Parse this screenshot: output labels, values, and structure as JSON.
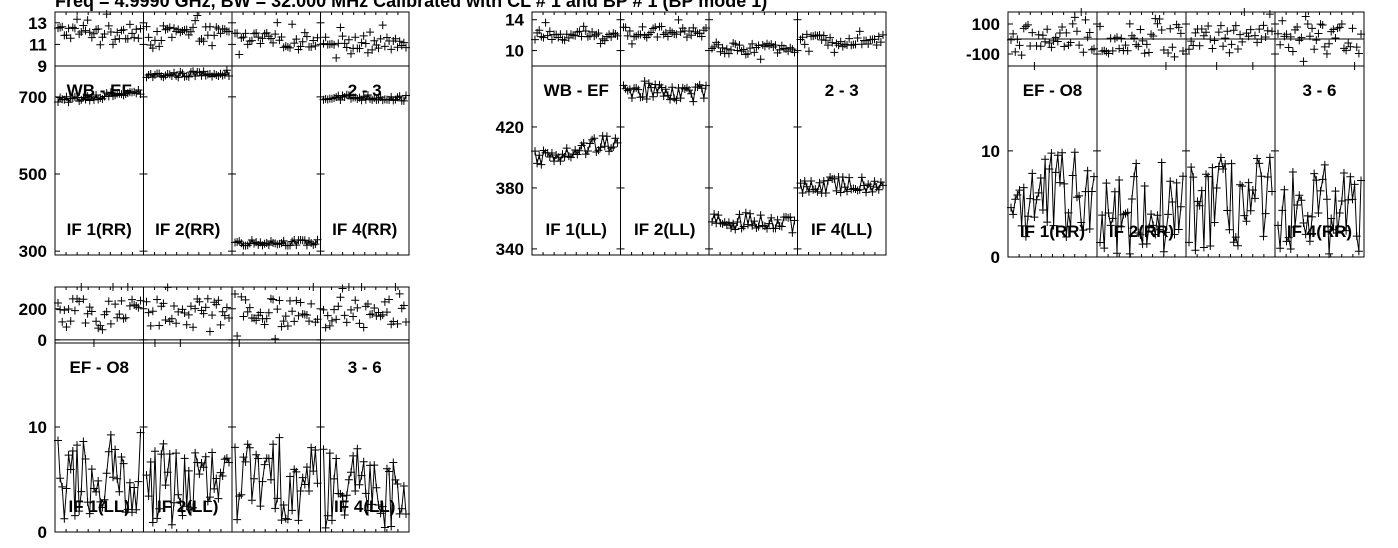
{
  "page_title": "Freq = 4.9990 GHz, BW = 32.000 MHz Calibrated with CL # 1 and BP # 1 (BP mode 1)",
  "chart_data": [
    {
      "type": "line",
      "baseline": "WB - EF",
      "polarization": "RR",
      "if_labels": [
        "IF 1(RR)",
        "IF 2(RR)",
        "",
        "IF 4(RR)"
      ],
      "panel_labels": [
        "WB - EF",
        "",
        "",
        "2 - 3"
      ],
      "phase": {
        "ylim": [
          9,
          14
        ],
        "yticks": [
          "13",
          "11",
          "9"
        ],
        "ytick_values": [
          13,
          11,
          9
        ],
        "levels": [
          12.2,
          12.0,
          11.4,
          11.1
        ],
        "spread": 1.2
      },
      "amplitude": {
        "ylim": [
          290,
          780
        ],
        "yticks": [
          "700",
          "500",
          "300"
        ],
        "ytick_values": [
          700,
          500,
          300
        ],
        "levels": [
          [
            690,
            712
          ],
          [
            755,
            762
          ],
          [
            322,
            322
          ],
          [
            700,
            696
          ]
        ],
        "spread": 8
      }
    },
    {
      "type": "line",
      "baseline": "WB - EF",
      "polarization": "LL",
      "if_labels": [
        "IF 1(LL)",
        "IF 2(LL)",
        "",
        "IF 4(LL)"
      ],
      "panel_labels": [
        "WB - EF",
        "",
        "",
        "2 - 3"
      ],
      "phase": {
        "ylim": [
          8,
          15
        ],
        "yticks": [
          "14",
          "10"
        ],
        "ytick_values": [
          14,
          10
        ],
        "levels": [
          12.0,
          12.4,
          10.2,
          11.4
        ],
        "spread": 1.2
      },
      "amplitude": {
        "ylim": [
          336,
          460
        ],
        "yticks": [
          "420",
          "380",
          "340"
        ],
        "ytick_values": [
          420,
          380,
          340
        ],
        "levels": [
          [
            400,
            410
          ],
          [
            445,
            442
          ],
          [
            360,
            355
          ],
          [
            381,
            383
          ]
        ],
        "spread": 6
      }
    },
    {
      "type": "line",
      "baseline": "EF - O8",
      "polarization": "RR",
      "if_labels": [
        "IF 1(RR)",
        "IF 2(RR)",
        "",
        "IF 4(RR)"
      ],
      "panel_labels": [
        "EF - O8",
        "",
        "",
        "3 - 6"
      ],
      "phase": {
        "ylim": [
          -180,
          180
        ],
        "yticks": [
          "100",
          "-100"
        ],
        "ytick_values": [
          100,
          -100
        ],
        "levels": [
          0,
          0,
          0,
          0
        ],
        "spread": 170
      },
      "amplitude": {
        "ylim": [
          0,
          18
        ],
        "yticks": [
          "10",
          "0"
        ],
        "ytick_values": [
          10,
          0
        ],
        "levels": [
          [
            5.5,
            5.5
          ],
          [
            4.5,
            4.5
          ],
          [
            5.0,
            5.0
          ],
          [
            4.5,
            4.5
          ]
        ],
        "spread": 4.5
      }
    },
    {
      "type": "line",
      "baseline": "EF - O8",
      "polarization": "LL",
      "if_labels": [
        "IF 1(LL)",
        "IF 2(LL)",
        "",
        "IF 4(LL)"
      ],
      "panel_labels": [
        "EF - O8",
        "",
        "",
        "3 - 6"
      ],
      "phase": {
        "ylim": [
          -20,
          340
        ],
        "yticks": [
          "200",
          "0"
        ],
        "ytick_values": [
          200,
          0
        ],
        "levels": [
          170,
          170,
          170,
          170
        ],
        "spread": 160
      },
      "amplitude": {
        "ylim": [
          0,
          18
        ],
        "yticks": [
          "10",
          "0"
        ],
        "ytick_values": [
          10,
          0
        ],
        "levels": [
          [
            5.0,
            5.5
          ],
          [
            4.5,
            4.5
          ],
          [
            5.0,
            5.0
          ],
          [
            4.0,
            4.0
          ]
        ],
        "spread": 4.0
      }
    }
  ]
}
